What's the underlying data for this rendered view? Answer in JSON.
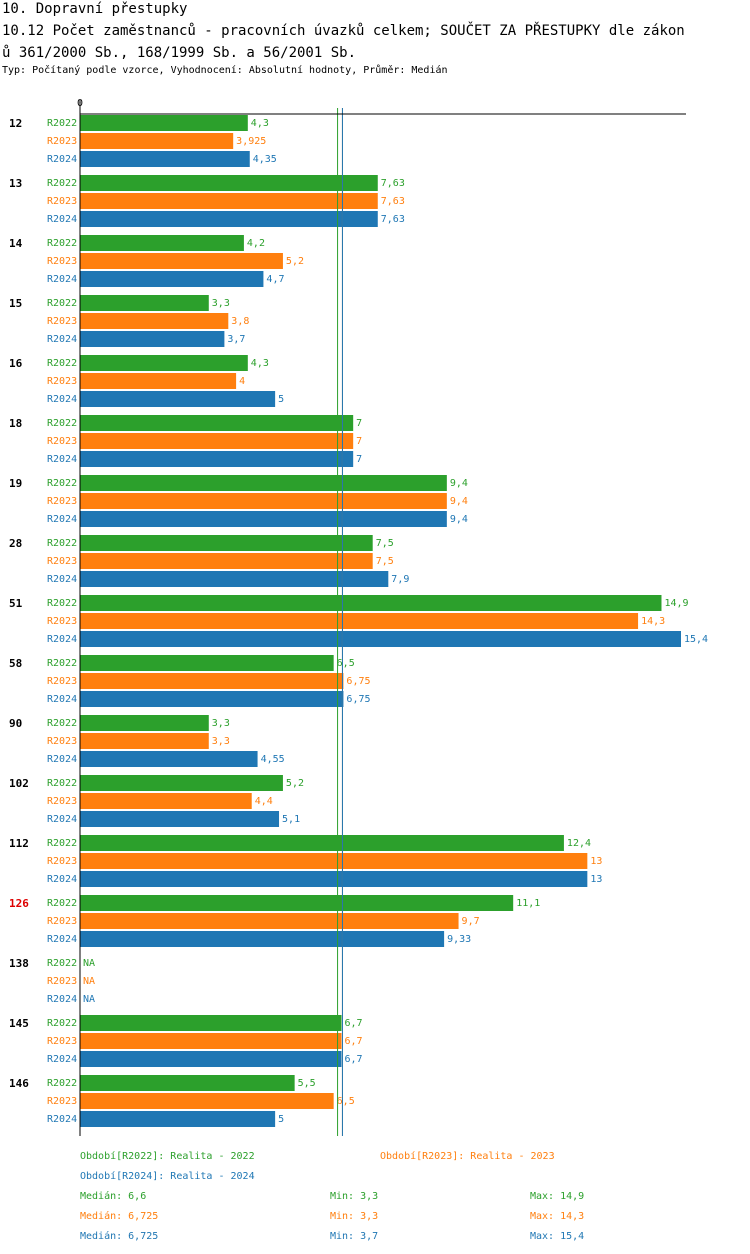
{
  "header": {
    "title": "10. Dopravní přestupky",
    "subtitle_line1": "10.12 Počet zaměstnanců - pracovních úvazků celkem; SOUČET ZA PŘESTUPKY dle zákon",
    "subtitle_line2": "ů 361/2000 Sb., 168/1999 Sb. a 56/2001 Sb.",
    "type_line": "Typ: Počítaný podle vzorce, Vyhodnocení: Absolutní hodnoty, Průměr: Medián"
  },
  "colors": {
    "R2022": "#2ca02c",
    "R2023": "#ff7f0e",
    "R2024": "#1f77b4",
    "highlight": "#dd0000"
  },
  "chart_data": {
    "type": "bar",
    "orientation": "horizontal",
    "axis_zero_label": "0",
    "xlim": [
      0,
      15.4
    ],
    "series_names": [
      "R2022",
      "R2023",
      "R2024"
    ],
    "categories": [
      "12",
      "13",
      "14",
      "15",
      "16",
      "18",
      "19",
      "28",
      "51",
      "58",
      "90",
      "102",
      "112",
      "126",
      "138",
      "145",
      "146"
    ],
    "highlight_category": "126",
    "series": [
      {
        "name": "R2022",
        "values": [
          4.3,
          7.63,
          4.2,
          3.3,
          4.3,
          7,
          9.4,
          7.5,
          14.9,
          6.5,
          3.3,
          5.2,
          12.4,
          11.1,
          null,
          6.7,
          5.5
        ],
        "labels": [
          "4,3",
          "7,63",
          "4,2",
          "3,3",
          "4,3",
          "7",
          "9,4",
          "7,5",
          "14,9",
          "6,5",
          "3,3",
          "5,2",
          "12,4",
          "11,1",
          "NA",
          "6,7",
          "5,5"
        ]
      },
      {
        "name": "R2023",
        "values": [
          3.925,
          7.63,
          5.2,
          3.8,
          4,
          7,
          9.4,
          7.5,
          14.3,
          6.75,
          3.3,
          4.4,
          13,
          9.7,
          null,
          6.7,
          6.5
        ],
        "labels": [
          "3,925",
          "7,63",
          "5,2",
          "3,8",
          "4",
          "7",
          "9,4",
          "7,5",
          "14,3",
          "6,75",
          "3,3",
          "4,4",
          "13",
          "9,7",
          "NA",
          "6,7",
          "6,5"
        ]
      },
      {
        "name": "R2024",
        "values": [
          4.35,
          7.63,
          4.7,
          3.7,
          5,
          7,
          9.4,
          7.9,
          15.4,
          6.75,
          4.55,
          5.1,
          13,
          9.33,
          null,
          6.7,
          5
        ],
        "labels": [
          "4,35",
          "7,63",
          "4,7",
          "3,7",
          "5",
          "7",
          "9,4",
          "7,9",
          "15,4",
          "6,75",
          "4,55",
          "5,1",
          "13",
          "9,33",
          "NA",
          "6,7",
          "5"
        ]
      }
    ],
    "median_lines": [
      6.6,
      6.725,
      6.725
    ]
  },
  "legend": {
    "period_R2022": "Období[R2022]: Realita - 2022",
    "period_R2023": "Období[R2023]: Realita - 2023",
    "period_R2024": "Období[R2024]: Realita - 2024",
    "stats": [
      {
        "median": "Medián: 6,6",
        "min": "Min: 3,3",
        "max": "Max: 14,9"
      },
      {
        "median": "Medián: 6,725",
        "min": "Min: 3,3",
        "max": "Max: 14,3"
      },
      {
        "median": "Medián: 6,725",
        "min": "Min: 3,7",
        "max": "Max: 15,4"
      }
    ]
  }
}
